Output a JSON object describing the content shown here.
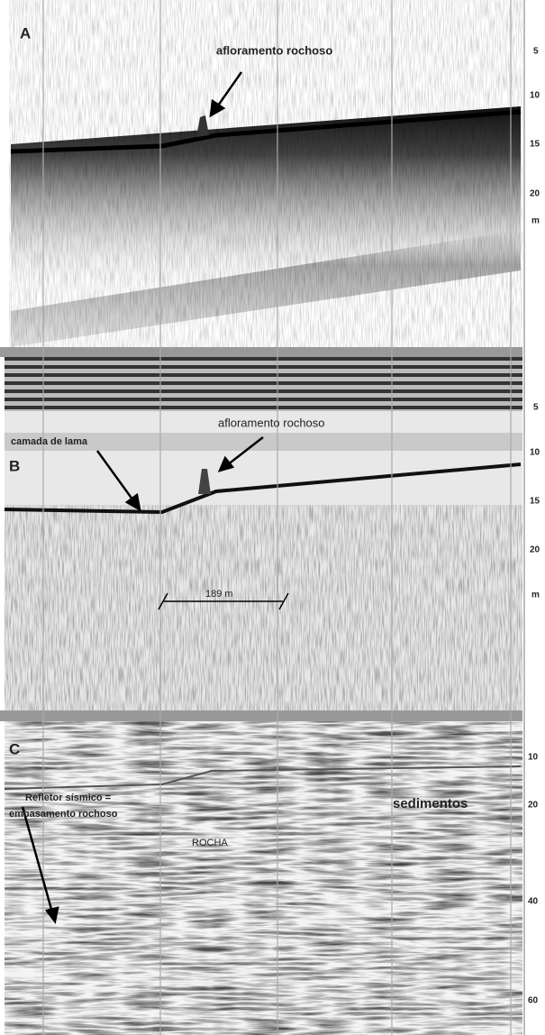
{
  "panels": [
    {
      "label": "A",
      "annotations": [
        "afloramento rochoso"
      ],
      "scale": [
        "5",
        "10",
        "15",
        "20",
        "m"
      ]
    },
    {
      "label": "B",
      "annotations": [
        "camada de lama",
        "afloramento rochoso",
        "189 m"
      ],
      "scale": [
        "5",
        "10",
        "15",
        "20",
        "m"
      ]
    },
    {
      "label": "C",
      "annotations": [
        "Refletor sísmico =",
        "embasamento rochoso",
        "sedimentos",
        "ROCHA"
      ],
      "scale": [
        "10",
        "20",
        "40",
        "60"
      ]
    }
  ]
}
